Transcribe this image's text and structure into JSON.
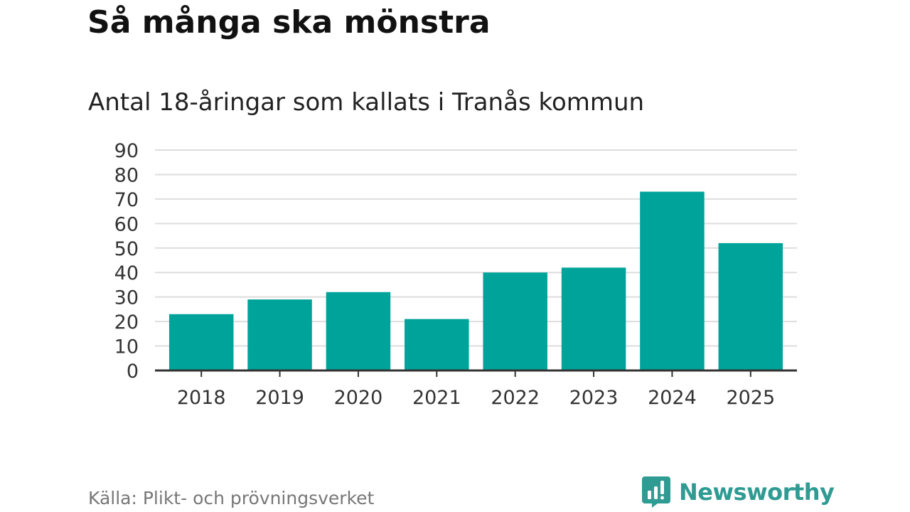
{
  "header": {
    "title": "Så många ska mönstra",
    "subtitle": "Antal 18-åringar som kallats i Tranås kommun"
  },
  "footer": {
    "source": "Källa: Plikt- och prövningsverket",
    "brand": "Newsworthy",
    "brand_icon": "newsworthy-logo-icon"
  },
  "colors": {
    "bar": "#00a39a",
    "grid": "#dddddd",
    "axis": "#333333",
    "brand": "#2f9b93"
  },
  "chart_data": {
    "type": "bar",
    "title": "Så många ska mönstra",
    "subtitle": "Antal 18-åringar som kallats i Tranås kommun",
    "xlabel": "",
    "ylabel": "",
    "categories": [
      "2018",
      "2019",
      "2020",
      "2021",
      "2022",
      "2023",
      "2024",
      "2025"
    ],
    "values": [
      23,
      29,
      32,
      21,
      40,
      42,
      73,
      52
    ],
    "ylim": [
      0,
      90
    ],
    "yticks": [
      0,
      10,
      20,
      30,
      40,
      50,
      60,
      70,
      80,
      90
    ],
    "grid": true,
    "legend": "none"
  }
}
